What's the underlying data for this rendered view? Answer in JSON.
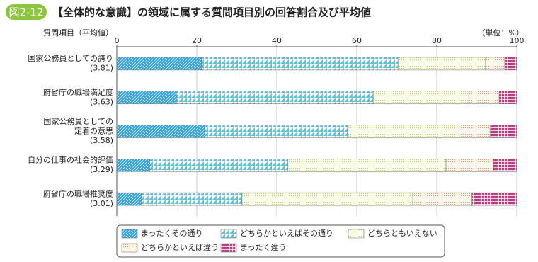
{
  "chart_data": {
    "type": "stacked_barh",
    "figure_label": "図2-12",
    "title": "【全体的な意識】の領域に属する質問項目別の回答割合及び平均値",
    "y_label": "質問項目（平均値）",
    "x_label": "（単位：%）",
    "categories": [
      [
        "国家公務員としての誇り"
      ],
      [
        "府省庁の職場満足度"
      ],
      [
        "国家公務員としての",
        "定着の意思"
      ],
      [
        "自分の仕事の社会的評価"
      ],
      [
        "府省庁の職場推奨度"
      ]
    ],
    "averages": [
      {
        "value": 3.81,
        "label": "(3.81)"
      },
      {
        "value": 3.63,
        "label": "(3.63)"
      },
      {
        "value": 3.58,
        "label": "(3.58)"
      },
      {
        "value": 3.29,
        "label": "(3.29)"
      },
      {
        "value": 3.01,
        "label": "(3.01)"
      }
    ],
    "series": [
      {
        "name": "まったくその通り",
        "color": "#3aa3d4",
        "values": [
          21.2,
          14.9,
          22.1,
          8.3,
          6.2
        ]
      },
      {
        "name": "どちらかといえばその通り",
        "color": "#5cc3d8",
        "values": [
          49.1,
          49.2,
          35.6,
          34.5,
          25.1
        ]
      },
      {
        "name": "どちらともいえない",
        "color": "#b9d36a",
        "values": [
          21.9,
          23.9,
          27.3,
          39.5,
          42.7
        ]
      },
      {
        "name": "どちらかといえば違う",
        "color": "#ee9a5e",
        "values": [
          4.8,
          7.6,
          8.3,
          11.9,
          14.8
        ]
      },
      {
        "name": "まったく違う",
        "color": "#d42f8a",
        "values": [
          3.0,
          4.4,
          6.7,
          5.8,
          11.2
        ]
      }
    ],
    "xlim": [
      0,
      100
    ],
    "xticks": [
      0,
      20,
      40,
      60,
      80,
      100
    ],
    "grid": true
  }
}
